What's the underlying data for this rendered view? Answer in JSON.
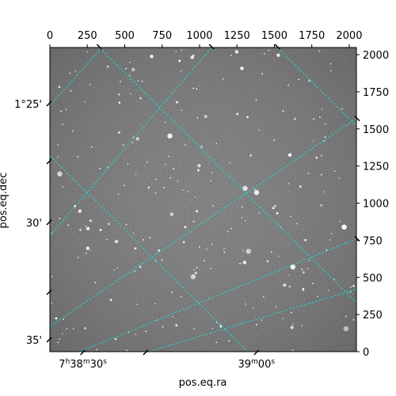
{
  "chart_data": {
    "type": "image",
    "colormap": "grayscale",
    "xlabel": "pos.eq.ra",
    "ylabel": "pos.eq.dec",
    "pixel_axes": {
      "x_range": [
        0,
        2048
      ],
      "y_range": [
        0,
        2048
      ],
      "top_ticks": [
        {
          "value": 0,
          "label": "0"
        },
        {
          "value": 250,
          "label": "250"
        },
        {
          "value": 500,
          "label": "500"
        },
        {
          "value": 750,
          "label": "750"
        },
        {
          "value": 1000,
          "label": "1000"
        },
        {
          "value": 1250,
          "label": "1250"
        },
        {
          "value": 1500,
          "label": "1500"
        },
        {
          "value": 1750,
          "label": "1750"
        },
        {
          "value": 2000,
          "label": "2000"
        }
      ],
      "right_ticks": [
        {
          "value": 0,
          "label": "0"
        },
        {
          "value": 250,
          "label": "250"
        },
        {
          "value": 500,
          "label": "500"
        },
        {
          "value": 750,
          "label": "750"
        },
        {
          "value": 1000,
          "label": "1000"
        },
        {
          "value": 1250,
          "label": "1250"
        },
        {
          "value": 1500,
          "label": "1500"
        },
        {
          "value": 1750,
          "label": "1750"
        },
        {
          "value": 2000,
          "label": "2000"
        }
      ]
    },
    "ra_ticks": [
      {
        "x": 220,
        "label": "7h38m30s"
      },
      {
        "x": 1380,
        "label": "39m00s"
      }
    ],
    "dec_ticks": [
      {
        "y": 1670,
        "label": "1°25'"
      },
      {
        "y": 870,
        "label": "30'"
      },
      {
        "y": 80,
        "label": "35'"
      }
    ],
    "grid": {
      "color": "#1fd3d3",
      "style": "dashed",
      "lines": [
        [
          [
            0,
            1320
          ],
          [
            1320,
            0
          ]
        ],
        [
          [
            330,
            2048
          ],
          [
            2048,
            330
          ]
        ],
        [
          [
            1520,
            2048
          ],
          [
            2048,
            1520
          ]
        ],
        [
          [
            0,
            1660
          ],
          [
            350,
            2048
          ]
        ],
        [
          [
            0,
            780
          ],
          [
            1080,
            2048
          ]
        ],
        [
          [
            0,
            170
          ],
          [
            2048,
            1570
          ]
        ],
        [
          [
            200,
            0
          ],
          [
            2048,
            760
          ]
        ],
        [
          [
            660,
            0
          ],
          [
            2048,
            420
          ]
        ]
      ]
    }
  },
  "tick_marks": {
    "bottom": [
      220,
      640,
      1380
    ],
    "left": [
      1670,
      1280,
      870,
      400,
      80
    ],
    "top": [
      330,
      1080,
      1520
    ],
    "right": [
      1570,
      760
    ]
  }
}
